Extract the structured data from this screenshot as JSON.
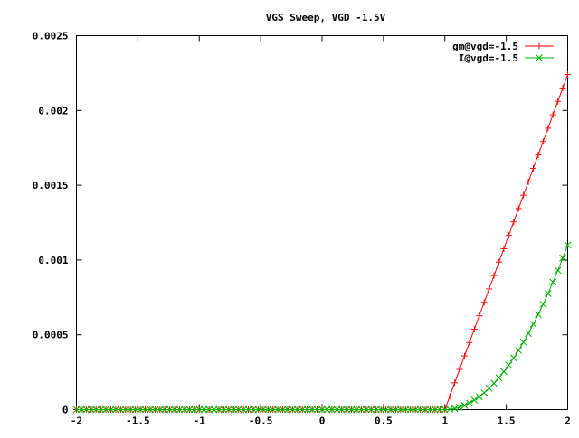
{
  "chart_data": {
    "type": "line",
    "title": "VGS Sweep, VGD -1.5V",
    "xlabel": "",
    "ylabel": "",
    "xlim": [
      -2,
      2
    ],
    "ylim": [
      0,
      0.0025
    ],
    "grid": false,
    "legend_position": "top-right",
    "x_ticks": [
      {
        "value": -2,
        "label": "-2"
      },
      {
        "value": -1.5,
        "label": "-1.5"
      },
      {
        "value": -1,
        "label": "-1"
      },
      {
        "value": -0.5,
        "label": "-0.5"
      },
      {
        "value": 0,
        "label": "0"
      },
      {
        "value": 0.5,
        "label": "0.5"
      },
      {
        "value": 1,
        "label": "1"
      },
      {
        "value": 1.5,
        "label": "1.5"
      },
      {
        "value": 2,
        "label": "2"
      }
    ],
    "y_ticks": [
      {
        "value": 0,
        "label": "0"
      },
      {
        "value": 0.0005,
        "label": "0.0005"
      },
      {
        "value": 0.001,
        "label": "0.001"
      },
      {
        "value": 0.0015,
        "label": "0.0015"
      },
      {
        "value": 0.002,
        "label": "0.002"
      },
      {
        "value": 0.0025,
        "label": "0.0025"
      }
    ],
    "x": [
      -2.0,
      -1.96,
      -1.92,
      -1.88,
      -1.84,
      -1.8,
      -1.76,
      -1.72,
      -1.68,
      -1.64,
      -1.6,
      -1.56,
      -1.52,
      -1.48,
      -1.44,
      -1.4,
      -1.36,
      -1.32,
      -1.28,
      -1.24,
      -1.2,
      -1.16,
      -1.12,
      -1.08,
      -1.04,
      -1.0,
      -0.96,
      -0.92,
      -0.88,
      -0.84,
      -0.8,
      -0.76,
      -0.72,
      -0.68,
      -0.64,
      -0.6,
      -0.56,
      -0.52,
      -0.48,
      -0.44,
      -0.4,
      -0.36,
      -0.32,
      -0.28,
      -0.24,
      -0.2,
      -0.16,
      -0.12,
      -0.08,
      -0.04,
      0.0,
      0.04,
      0.08,
      0.12,
      0.16,
      0.2,
      0.24,
      0.28,
      0.32,
      0.36,
      0.4,
      0.44,
      0.48,
      0.52,
      0.56,
      0.6,
      0.64,
      0.68,
      0.72,
      0.76,
      0.8,
      0.84,
      0.88,
      0.92,
      0.96,
      1.0,
      1.04,
      1.08,
      1.12,
      1.16,
      1.2,
      1.24,
      1.28,
      1.32,
      1.36,
      1.4,
      1.44,
      1.48,
      1.52,
      1.56,
      1.6,
      1.64,
      1.68,
      1.72,
      1.76,
      1.8,
      1.84,
      1.88,
      1.92,
      1.96,
      2.0
    ],
    "series": [
      {
        "name": "gm@vgd=-1.5",
        "color": "#ff0000",
        "marker": "plus",
        "values": [
          0,
          0,
          0,
          0,
          0,
          0,
          0,
          0,
          0,
          0,
          0,
          0,
          0,
          0,
          0,
          0,
          0,
          0,
          0,
          0,
          0,
          0,
          0,
          0,
          0,
          0,
          0,
          0,
          0,
          0,
          0,
          0,
          0,
          0,
          0,
          0,
          0,
          0,
          0,
          0,
          0,
          0,
          0,
          0,
          0,
          0,
          0,
          0,
          0,
          0,
          0,
          0,
          0,
          0,
          0,
          0,
          0,
          0,
          0,
          0,
          0,
          0,
          0,
          0,
          0,
          0,
          0,
          0,
          0,
          0,
          0,
          0,
          0,
          0,
          0,
          0,
          8.96e-05,
          0.0001792,
          0.0002688,
          0.0003584,
          0.000448,
          0.0005376,
          0.0006272,
          0.0007168,
          0.0008064,
          0.000896,
          0.0009856,
          0.0010752,
          0.0011648,
          0.0012544,
          0.001344,
          0.0014336,
          0.0015232,
          0.0016128,
          0.0017024,
          0.001792,
          0.0018816,
          0.0019712,
          0.0020608,
          0.0021504,
          0.00224
        ]
      },
      {
        "name": "I@vgd=-1.5",
        "color": "#00b000",
        "marker": "cross",
        "values": [
          0,
          0,
          0,
          0,
          0,
          0,
          0,
          0,
          0,
          0,
          0,
          0,
          0,
          0,
          0,
          0,
          0,
          0,
          0,
          0,
          0,
          0,
          0,
          0,
          0,
          0,
          0,
          0,
          0,
          0,
          0,
          0,
          0,
          0,
          0,
          0,
          0,
          0,
          0,
          0,
          0,
          0,
          0,
          0,
          0,
          0,
          0,
          0,
          0,
          0,
          0,
          0,
          0,
          0,
          0,
          0,
          0,
          0,
          0,
          0,
          0,
          0,
          0,
          0,
          0,
          0,
          0,
          0,
          0,
          0,
          0,
          0,
          0,
          0,
          0,
          0,
          1.76e-06,
          7.04e-06,
          1.584e-05,
          2.816e-05,
          4.4e-05,
          6.336e-05,
          8.624e-05,
          0.00011264,
          0.00014256,
          0.000176,
          0.00021296,
          0.00025344,
          0.00029744,
          0.00034496,
          0.000396,
          0.00045056,
          0.00050864,
          0.00057024,
          0.00063536,
          0.000704,
          0.00077616,
          0.00085184,
          0.00093104,
          0.00101376,
          0.0011
        ]
      }
    ]
  }
}
